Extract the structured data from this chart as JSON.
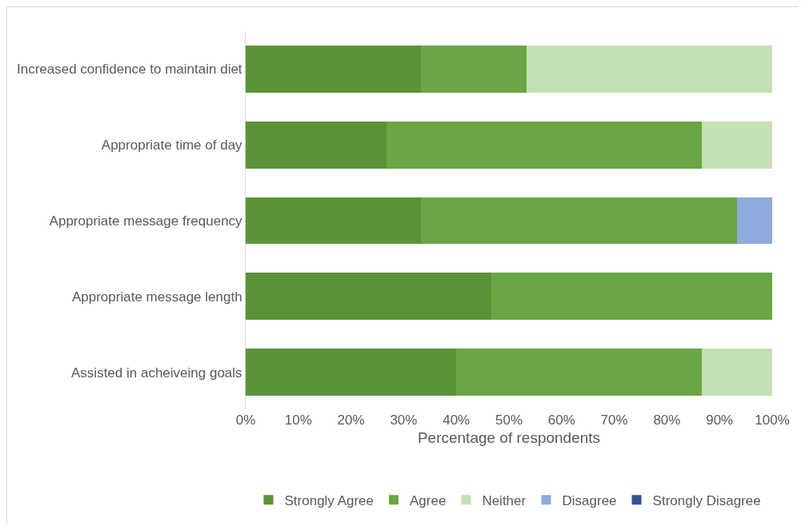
{
  "chart_data": {
    "type": "bar",
    "orientation": "horizontal",
    "stacked": true,
    "categories": [
      "Increased confidence to maintain diet",
      "Appropriate time of day",
      "Appropriate message frequency",
      "Appropriate message length",
      "Assisted in acheiveing goals"
    ],
    "series": [
      {
        "name": "Strongly Agree",
        "color": "#5b9339",
        "values": [
          33.3,
          26.7,
          33.3,
          46.7,
          40
        ]
      },
      {
        "name": "Agree",
        "color": "#6aa644",
        "values": [
          20,
          60,
          60,
          53.3,
          46.7
        ]
      },
      {
        "name": "Neither",
        "color": "#c5e0b4",
        "values": [
          46.7,
          13.3,
          0,
          0,
          13.3
        ]
      },
      {
        "name": "Disagree",
        "color": "#8faadc",
        "values": [
          0,
          0,
          6.7,
          0,
          0
        ]
      },
      {
        "name": "Strongly Disagree",
        "color": "#2f5597",
        "values": [
          0,
          0,
          0,
          0,
          0
        ]
      }
    ],
    "xlabel": "Percentage of respondents",
    "xlim": [
      0,
      100
    ],
    "xticks": [
      {
        "value": 0,
        "label": "0%"
      },
      {
        "value": 10,
        "label": "10%"
      },
      {
        "value": 20,
        "label": "20%"
      },
      {
        "value": 30,
        "label": "30%"
      },
      {
        "value": 40,
        "label": "40%"
      },
      {
        "value": 50,
        "label": "50%"
      },
      {
        "value": 60,
        "label": "60%"
      },
      {
        "value": 70,
        "label": "70%"
      },
      {
        "value": 80,
        "label": "80%"
      },
      {
        "value": 90,
        "label": "90%"
      },
      {
        "value": 100,
        "label": "100%"
      }
    ],
    "grid": false,
    "legend": "bottom"
  }
}
